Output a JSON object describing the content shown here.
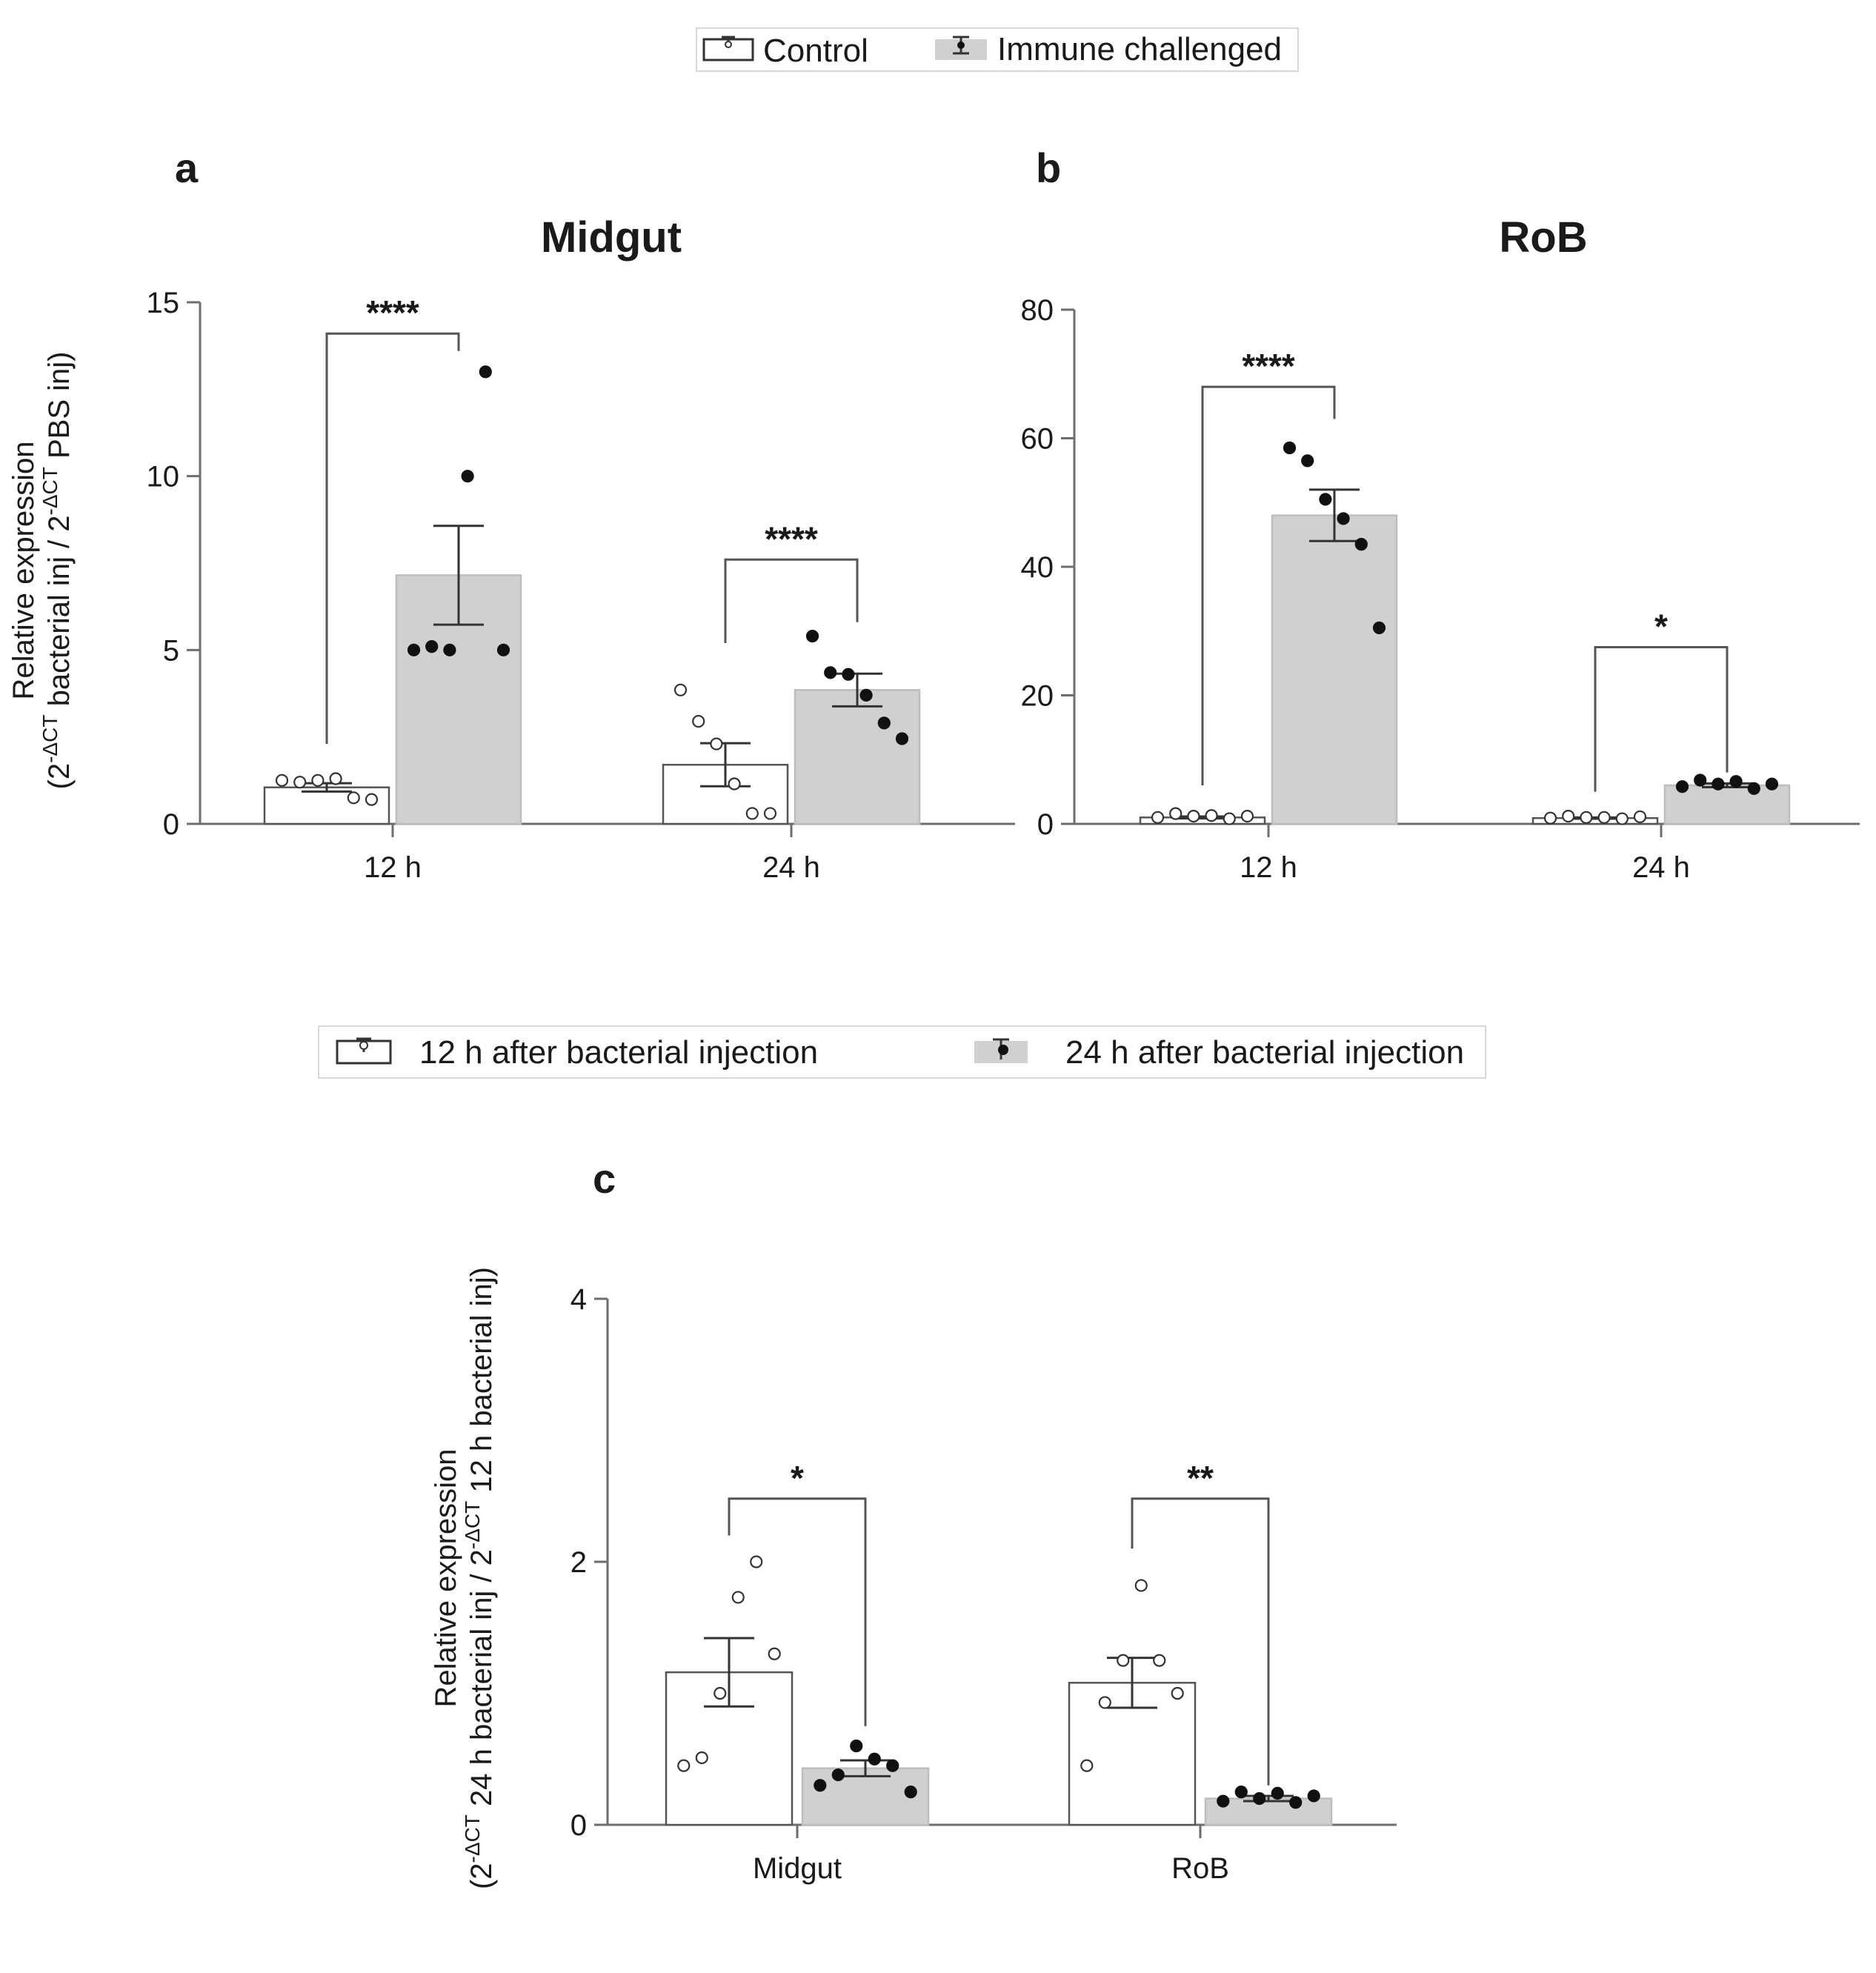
{
  "colors": {
    "control_fill": "#ffffff",
    "treated_fill": "#d0d0d0",
    "bar_stroke": "#555555",
    "point_dark": "#111111",
    "axis": "#6e6e6e"
  },
  "legend_top": {
    "items": [
      {
        "label": "Control",
        "style": "control"
      },
      {
        "label": "Immune challenged",
        "style": "treated"
      }
    ]
  },
  "legend_bottom": {
    "items": [
      {
        "label": "12 h after bacterial injection",
        "style": "control"
      },
      {
        "label": "24 h after bacterial injection",
        "style": "treated"
      }
    ]
  },
  "shared_ylabel_ab": {
    "line1": "Relative expression",
    "line2_parts": [
      "(2",
      "-ΔCT",
      " bacterial inj / 2",
      "-ΔCT",
      " PBS inj)"
    ]
  },
  "chart_data": [
    {
      "panel": "a",
      "type": "bar",
      "title": "Midgut",
      "xlabel": "",
      "ylabel": "Relative expression (2-ΔCT bacterial inj / 2-ΔCT PBS inj)",
      "ylim": [
        0,
        15
      ],
      "yticks": [
        0,
        5,
        10,
        15
      ],
      "categories": [
        "12 h",
        "24 h"
      ],
      "series": [
        {
          "name": "Control",
          "style": "control",
          "values": [
            1.05,
            1.7
          ],
          "sem": [
            0.12,
            0.62
          ],
          "points": [
            [
              1.25,
              1.2,
              1.25,
              1.3,
              0.75,
              0.7
            ],
            [
              3.85,
              2.95,
              2.3,
              1.15,
              0.3,
              0.3
            ]
          ]
        },
        {
          "name": "Immune challenged",
          "style": "treated",
          "values": [
            7.15,
            3.85
          ],
          "sem": [
            1.42,
            0.47
          ],
          "points": [
            [
              5.0,
              5.1,
              5.0,
              10.0,
              13.0,
              5.0
            ],
            [
              5.4,
              4.35,
              4.3,
              3.7,
              2.9,
              2.45
            ]
          ]
        }
      ],
      "significance": [
        {
          "category": "12 h",
          "label": "****",
          "y_top": 14.1,
          "left_start": 2.3,
          "right_start": 13.6
        },
        {
          "category": "24 h",
          "label": "****",
          "y_top": 7.6,
          "left_start": 5.2,
          "right_start": 5.8
        }
      ]
    },
    {
      "panel": "b",
      "type": "bar",
      "title": "RoB",
      "xlabel": "",
      "ylabel": "Relative expression (2-ΔCT bacterial inj / 2-ΔCT PBS inj)",
      "ylim": [
        0,
        80
      ],
      "yticks": [
        0,
        20,
        40,
        60,
        80
      ],
      "categories": [
        "12 h",
        "24 h"
      ],
      "series": [
        {
          "name": "Control",
          "style": "control",
          "values": [
            1.0,
            0.9
          ],
          "sem": [
            0.15,
            0.1
          ],
          "points": [
            [
              1.0,
              1.6,
              1.2,
              1.3,
              0.8,
              1.2
            ],
            [
              0.9,
              1.2,
              1.0,
              1.0,
              0.8,
              1.1
            ]
          ]
        },
        {
          "name": "Immune challenged",
          "style": "treated",
          "values": [
            48.0,
            6.0
          ],
          "sem": [
            4.0,
            0.3
          ],
          "points": [
            [
              58.5,
              56.5,
              50.5,
              47.5,
              43.5,
              30.5
            ],
            [
              5.8,
              6.8,
              6.2,
              6.6,
              5.5,
              6.2
            ]
          ]
        }
      ],
      "significance": [
        {
          "category": "12 h",
          "label": "****",
          "y_top": 68.0,
          "left_start": 6.0,
          "right_start": 63.0
        },
        {
          "category": "24 h",
          "label": "*",
          "y_top": 27.5,
          "left_start": 5.0,
          "right_start": 8.0
        }
      ]
    },
    {
      "panel": "c",
      "type": "bar",
      "title": "",
      "xlabel": "",
      "ylabel": "Relative expression (2-ΔCT 24 h bacterial inj / 2-ΔCT 12 h bacterial inj)",
      "ylabel_line1": "Relative expression",
      "ylabel_line2_parts": [
        "(2",
        "-ΔCT",
        " 24 h bacterial inj / 2",
        "-ΔCT",
        " 12 h bacterial inj)"
      ],
      "ylim": [
        0,
        4
      ],
      "yticks": [
        0,
        2,
        4
      ],
      "categories": [
        "Midgut",
        "RoB"
      ],
      "series": [
        {
          "name": "12 h after bacterial injection",
          "style": "control",
          "values": [
            1.16,
            1.08
          ],
          "sem": [
            0.26,
            0.19
          ],
          "points": [
            [
              0.45,
              0.51,
              1.0,
              1.73,
              2.0,
              1.3
            ],
            [
              0.45,
              0.93,
              1.25,
              1.82,
              1.25,
              1.0
            ]
          ]
        },
        {
          "name": "24 h after bacterial injection",
          "style": "treated",
          "values": [
            0.43,
            0.2
          ],
          "sem": [
            0.06,
            0.02
          ],
          "points": [
            [
              0.3,
              0.38,
              0.6,
              0.5,
              0.45,
              0.25
            ],
            [
              0.18,
              0.25,
              0.2,
              0.24,
              0.17,
              0.22
            ]
          ]
        }
      ],
      "significance": [
        {
          "category": "Midgut",
          "label": "*",
          "y_top": 2.48,
          "left_start": 2.2,
          "right_start": 0.75
        },
        {
          "category": "RoB",
          "label": "**",
          "y_top": 2.48,
          "left_start": 2.1,
          "right_start": 0.3
        }
      ]
    }
  ]
}
